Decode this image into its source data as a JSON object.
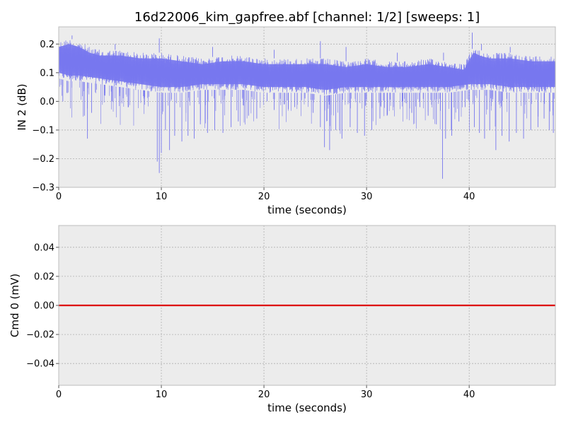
{
  "figure": {
    "title": "16d22006_kim_gapfree.abf [channel: 1/2] [sweeps: 1]"
  },
  "colors": {
    "background": "#ffffff",
    "axes_face": "#ececec",
    "grid": "#b0b0b0",
    "spine": "#bcbcbc",
    "signal_line": "#7777ee",
    "command_line": "#dd0000"
  },
  "chart_data": [
    {
      "type": "line",
      "name": "top-panel",
      "xlabel": "time (seconds)",
      "ylabel": "IN 2 (dB)",
      "xlim": [
        0,
        48.4
      ],
      "ylim": [
        -0.3,
        0.26
      ],
      "xticks": [
        0,
        10,
        20,
        30,
        40
      ],
      "xtick_labels": [
        "0",
        "10",
        "20",
        "30",
        "40"
      ],
      "yticks": [
        -0.3,
        -0.2,
        -0.1,
        0.0,
        0.1,
        0.2
      ],
      "ytick_labels": [
        "−0.3",
        "−0.2",
        "−0.1",
        "0.0",
        "0.1",
        "0.2"
      ],
      "grid": true,
      "series": [
        {
          "color": "#7777ee",
          "baseline": [
            [
              0,
              0.13
            ],
            [
              2,
              0.12
            ],
            [
              5,
              0.12
            ],
            [
              8,
              0.11
            ],
            [
              10,
              0.1
            ],
            [
              13,
              0.11
            ],
            [
              16,
              0.1
            ],
            [
              19,
              0.1
            ],
            [
              22,
              0.1
            ],
            [
              25,
              0.09
            ],
            [
              28,
              0.1
            ],
            [
              31,
              0.09
            ],
            [
              33,
              0.09
            ],
            [
              35,
              0.1
            ],
            [
              38,
              0.1
            ],
            [
              40,
              0.1
            ],
            [
              41,
              0.11
            ],
            [
              43,
              0.1
            ],
            [
              46,
              0.1
            ],
            [
              48.4,
              0.1
            ]
          ],
          "upper_envelope": [
            [
              0,
              0.21
            ],
            [
              1,
              0.22
            ],
            [
              2,
              0.21
            ],
            [
              3,
              0.19
            ],
            [
              4,
              0.18
            ],
            [
              6,
              0.18
            ],
            [
              8,
              0.17
            ],
            [
              10,
              0.17
            ],
            [
              12,
              0.16
            ],
            [
              14,
              0.15
            ],
            [
              16,
              0.16
            ],
            [
              18,
              0.16
            ],
            [
              20,
              0.15
            ],
            [
              22,
              0.15
            ],
            [
              24,
              0.15
            ],
            [
              26,
              0.15
            ],
            [
              28,
              0.14
            ],
            [
              30,
              0.15
            ],
            [
              32,
              0.14
            ],
            [
              34,
              0.14
            ],
            [
              36,
              0.15
            ],
            [
              38,
              0.14
            ],
            [
              39.5,
              0.13
            ],
            [
              40.4,
              0.19
            ],
            [
              41,
              0.18
            ],
            [
              42,
              0.17
            ],
            [
              44,
              0.17
            ],
            [
              46,
              0.16
            ],
            [
              48.4,
              0.16
            ]
          ],
          "lower_envelope": [
            [
              0,
              0.08
            ],
            [
              1,
              0.07
            ],
            [
              2,
              0.07
            ],
            [
              4,
              0.06
            ],
            [
              6,
              0.05
            ],
            [
              8,
              0.04
            ],
            [
              10,
              0.03
            ],
            [
              12,
              0.03
            ],
            [
              14,
              0.04
            ],
            [
              16,
              0.04
            ],
            [
              18,
              0.04
            ],
            [
              20,
              0.03
            ],
            [
              22,
              0.03
            ],
            [
              24,
              0.03
            ],
            [
              26,
              0.02
            ],
            [
              28,
              0.03
            ],
            [
              30,
              0.03
            ],
            [
              32,
              0.03
            ],
            [
              34,
              0.03
            ],
            [
              36,
              0.03
            ],
            [
              38,
              0.03
            ],
            [
              40,
              0.04
            ],
            [
              42,
              0.04
            ],
            [
              44,
              0.03
            ],
            [
              46,
              0.03
            ],
            [
              48.4,
              0.03
            ]
          ],
          "spikes": [
            [
              0.4,
              0.0
            ],
            [
              0.8,
              0.03
            ],
            [
              1.2,
              0.1
            ],
            [
              2.5,
              -0.05
            ],
            [
              2.8,
              -0.13
            ],
            [
              3.2,
              -0.04
            ],
            [
              3.6,
              0.07
            ],
            [
              4.5,
              0.02
            ],
            [
              5.2,
              0.0
            ],
            [
              6.0,
              0.03
            ],
            [
              6.8,
              -0.02
            ],
            [
              7.5,
              0.04
            ],
            [
              8.3,
              0.01
            ],
            [
              9.0,
              0.05
            ],
            [
              9.6,
              -0.21
            ],
            [
              9.8,
              -0.25
            ],
            [
              10.0,
              -0.18
            ],
            [
              10.4,
              -0.1
            ],
            [
              10.8,
              -0.17
            ],
            [
              11.3,
              -0.12
            ],
            [
              12.0,
              -0.14
            ],
            [
              12.6,
              -0.12
            ],
            [
              13.2,
              -0.13
            ],
            [
              13.8,
              -0.08
            ],
            [
              14.5,
              -0.11
            ],
            [
              15.2,
              -0.1
            ],
            [
              16.0,
              -0.11
            ],
            [
              16.8,
              -0.09
            ],
            [
              17.5,
              -0.07
            ],
            [
              18.5,
              -0.05
            ],
            [
              19.3,
              -0.06
            ],
            [
              20.3,
              0.0
            ],
            [
              21.0,
              -0.03
            ],
            [
              22.0,
              -0.01
            ],
            [
              23.0,
              -0.02
            ],
            [
              24.0,
              0.01
            ],
            [
              24.8,
              -0.04
            ],
            [
              25.5,
              -0.09
            ],
            [
              25.9,
              -0.16
            ],
            [
              26.4,
              -0.17
            ],
            [
              27.0,
              -0.1
            ],
            [
              27.6,
              -0.13
            ],
            [
              28.4,
              -0.09
            ],
            [
              29.1,
              -0.11
            ],
            [
              29.8,
              -0.12
            ],
            [
              30.5,
              -0.1
            ],
            [
              31.3,
              -0.06
            ],
            [
              32.0,
              -0.05
            ],
            [
              32.6,
              -0.02
            ],
            [
              33.5,
              0.0
            ],
            [
              34.4,
              -0.04
            ],
            [
              35.2,
              -0.02
            ],
            [
              36.0,
              -0.05
            ],
            [
              36.8,
              -0.08
            ],
            [
              37.4,
              -0.27
            ],
            [
              37.7,
              -0.13
            ],
            [
              38.3,
              -0.12
            ],
            [
              39.0,
              -0.07
            ],
            [
              39.6,
              -0.02
            ],
            [
              40.5,
              -0.09
            ],
            [
              41.0,
              -0.11
            ],
            [
              41.5,
              -0.13
            ],
            [
              42.0,
              -0.1
            ],
            [
              42.6,
              -0.17
            ],
            [
              43.2,
              -0.12
            ],
            [
              43.9,
              -0.14
            ],
            [
              44.6,
              -0.11
            ],
            [
              45.3,
              -0.13
            ],
            [
              46.0,
              -0.1
            ],
            [
              46.7,
              -0.09
            ],
            [
              47.3,
              -0.06
            ],
            [
              47.8,
              -0.1
            ],
            [
              48.2,
              -0.11
            ]
          ],
          "up_spikes": [
            [
              1.3,
              0.23
            ],
            [
              5.5,
              0.2
            ],
            [
              9.8,
              0.22
            ],
            [
              15.0,
              0.19
            ],
            [
              21.0,
              0.18
            ],
            [
              25.5,
              0.21
            ],
            [
              28.0,
              0.19
            ],
            [
              33.0,
              0.17
            ],
            [
              37.5,
              0.17
            ],
            [
              40.3,
              0.24
            ],
            [
              41.2,
              0.2
            ],
            [
              44.0,
              0.19
            ]
          ]
        }
      ]
    },
    {
      "type": "line",
      "name": "bottom-panel",
      "xlabel": "time (seconds)",
      "ylabel": "Cmd 0 (mV)",
      "xlim": [
        0,
        48.4
      ],
      "ylim": [
        -0.055,
        0.055
      ],
      "xticks": [
        0,
        10,
        20,
        30,
        40
      ],
      "xtick_labels": [
        "0",
        "10",
        "20",
        "30",
        "40"
      ],
      "yticks": [
        -0.04,
        -0.02,
        0.0,
        0.02,
        0.04
      ],
      "ytick_labels": [
        "−0.04",
        "−0.02",
        "0.00",
        "0.02",
        "0.04"
      ],
      "grid": true,
      "series": [
        {
          "color": "#dd0000",
          "x": [
            0,
            48.4
          ],
          "y": [
            0.0,
            0.0
          ]
        }
      ]
    }
  ]
}
